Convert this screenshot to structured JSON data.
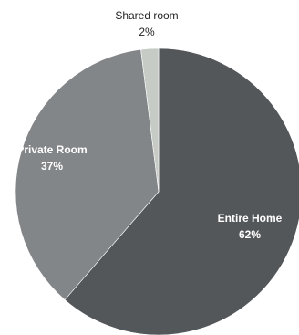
{
  "chart_data": {
    "type": "pie",
    "slices": [
      {
        "label": "Entire Home",
        "percent_label": "62%",
        "value": 62,
        "color": "#54575a"
      },
      {
        "label": "Private Room",
        "percent_label": "37%",
        "value": 37,
        "color": "#838689"
      },
      {
        "label": "Shared room",
        "percent_label": "2%",
        "value": 2,
        "color": "#c7cbc6"
      }
    ],
    "start": "top",
    "direction": "clockwise"
  }
}
